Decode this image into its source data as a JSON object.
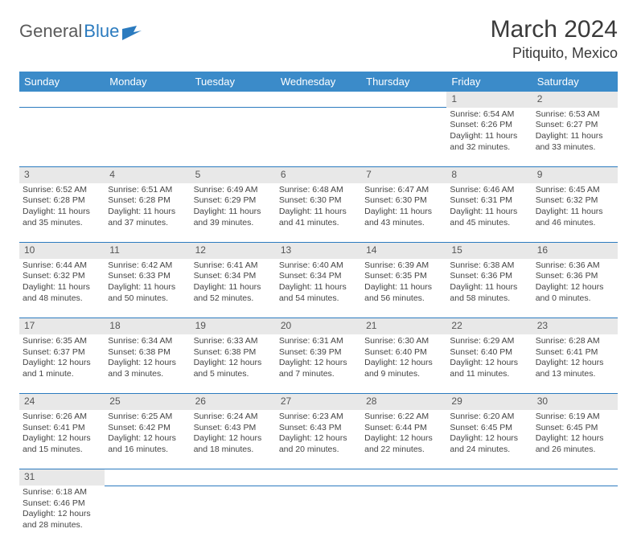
{
  "logo": {
    "text1": "General",
    "text2": "Blue"
  },
  "title": "March 2024",
  "location": "Pitiquito, Mexico",
  "colors": {
    "header_bg": "#3b8bc9",
    "header_text": "#ffffff",
    "daynum_bg": "#e8e8e8",
    "border": "#2b7bbf",
    "logo_blue": "#2b7bbf"
  },
  "weekdays": [
    "Sunday",
    "Monday",
    "Tuesday",
    "Wednesday",
    "Thursday",
    "Friday",
    "Saturday"
  ],
  "weeks": [
    [
      null,
      null,
      null,
      null,
      null,
      {
        "n": "1",
        "sr": "Sunrise: 6:54 AM",
        "ss": "Sunset: 6:26 PM",
        "d1": "Daylight: 11 hours",
        "d2": "and 32 minutes."
      },
      {
        "n": "2",
        "sr": "Sunrise: 6:53 AM",
        "ss": "Sunset: 6:27 PM",
        "d1": "Daylight: 11 hours",
        "d2": "and 33 minutes."
      }
    ],
    [
      {
        "n": "3",
        "sr": "Sunrise: 6:52 AM",
        "ss": "Sunset: 6:28 PM",
        "d1": "Daylight: 11 hours",
        "d2": "and 35 minutes."
      },
      {
        "n": "4",
        "sr": "Sunrise: 6:51 AM",
        "ss": "Sunset: 6:28 PM",
        "d1": "Daylight: 11 hours",
        "d2": "and 37 minutes."
      },
      {
        "n": "5",
        "sr": "Sunrise: 6:49 AM",
        "ss": "Sunset: 6:29 PM",
        "d1": "Daylight: 11 hours",
        "d2": "and 39 minutes."
      },
      {
        "n": "6",
        "sr": "Sunrise: 6:48 AM",
        "ss": "Sunset: 6:30 PM",
        "d1": "Daylight: 11 hours",
        "d2": "and 41 minutes."
      },
      {
        "n": "7",
        "sr": "Sunrise: 6:47 AM",
        "ss": "Sunset: 6:30 PM",
        "d1": "Daylight: 11 hours",
        "d2": "and 43 minutes."
      },
      {
        "n": "8",
        "sr": "Sunrise: 6:46 AM",
        "ss": "Sunset: 6:31 PM",
        "d1": "Daylight: 11 hours",
        "d2": "and 45 minutes."
      },
      {
        "n": "9",
        "sr": "Sunrise: 6:45 AM",
        "ss": "Sunset: 6:32 PM",
        "d1": "Daylight: 11 hours",
        "d2": "and 46 minutes."
      }
    ],
    [
      {
        "n": "10",
        "sr": "Sunrise: 6:44 AM",
        "ss": "Sunset: 6:32 PM",
        "d1": "Daylight: 11 hours",
        "d2": "and 48 minutes."
      },
      {
        "n": "11",
        "sr": "Sunrise: 6:42 AM",
        "ss": "Sunset: 6:33 PM",
        "d1": "Daylight: 11 hours",
        "d2": "and 50 minutes."
      },
      {
        "n": "12",
        "sr": "Sunrise: 6:41 AM",
        "ss": "Sunset: 6:34 PM",
        "d1": "Daylight: 11 hours",
        "d2": "and 52 minutes."
      },
      {
        "n": "13",
        "sr": "Sunrise: 6:40 AM",
        "ss": "Sunset: 6:34 PM",
        "d1": "Daylight: 11 hours",
        "d2": "and 54 minutes."
      },
      {
        "n": "14",
        "sr": "Sunrise: 6:39 AM",
        "ss": "Sunset: 6:35 PM",
        "d1": "Daylight: 11 hours",
        "d2": "and 56 minutes."
      },
      {
        "n": "15",
        "sr": "Sunrise: 6:38 AM",
        "ss": "Sunset: 6:36 PM",
        "d1": "Daylight: 11 hours",
        "d2": "and 58 minutes."
      },
      {
        "n": "16",
        "sr": "Sunrise: 6:36 AM",
        "ss": "Sunset: 6:36 PM",
        "d1": "Daylight: 12 hours",
        "d2": "and 0 minutes."
      }
    ],
    [
      {
        "n": "17",
        "sr": "Sunrise: 6:35 AM",
        "ss": "Sunset: 6:37 PM",
        "d1": "Daylight: 12 hours",
        "d2": "and 1 minute."
      },
      {
        "n": "18",
        "sr": "Sunrise: 6:34 AM",
        "ss": "Sunset: 6:38 PM",
        "d1": "Daylight: 12 hours",
        "d2": "and 3 minutes."
      },
      {
        "n": "19",
        "sr": "Sunrise: 6:33 AM",
        "ss": "Sunset: 6:38 PM",
        "d1": "Daylight: 12 hours",
        "d2": "and 5 minutes."
      },
      {
        "n": "20",
        "sr": "Sunrise: 6:31 AM",
        "ss": "Sunset: 6:39 PM",
        "d1": "Daylight: 12 hours",
        "d2": "and 7 minutes."
      },
      {
        "n": "21",
        "sr": "Sunrise: 6:30 AM",
        "ss": "Sunset: 6:40 PM",
        "d1": "Daylight: 12 hours",
        "d2": "and 9 minutes."
      },
      {
        "n": "22",
        "sr": "Sunrise: 6:29 AM",
        "ss": "Sunset: 6:40 PM",
        "d1": "Daylight: 12 hours",
        "d2": "and 11 minutes."
      },
      {
        "n": "23",
        "sr": "Sunrise: 6:28 AM",
        "ss": "Sunset: 6:41 PM",
        "d1": "Daylight: 12 hours",
        "d2": "and 13 minutes."
      }
    ],
    [
      {
        "n": "24",
        "sr": "Sunrise: 6:26 AM",
        "ss": "Sunset: 6:41 PM",
        "d1": "Daylight: 12 hours",
        "d2": "and 15 minutes."
      },
      {
        "n": "25",
        "sr": "Sunrise: 6:25 AM",
        "ss": "Sunset: 6:42 PM",
        "d1": "Daylight: 12 hours",
        "d2": "and 16 minutes."
      },
      {
        "n": "26",
        "sr": "Sunrise: 6:24 AM",
        "ss": "Sunset: 6:43 PM",
        "d1": "Daylight: 12 hours",
        "d2": "and 18 minutes."
      },
      {
        "n": "27",
        "sr": "Sunrise: 6:23 AM",
        "ss": "Sunset: 6:43 PM",
        "d1": "Daylight: 12 hours",
        "d2": "and 20 minutes."
      },
      {
        "n": "28",
        "sr": "Sunrise: 6:22 AM",
        "ss": "Sunset: 6:44 PM",
        "d1": "Daylight: 12 hours",
        "d2": "and 22 minutes."
      },
      {
        "n": "29",
        "sr": "Sunrise: 6:20 AM",
        "ss": "Sunset: 6:45 PM",
        "d1": "Daylight: 12 hours",
        "d2": "and 24 minutes."
      },
      {
        "n": "30",
        "sr": "Sunrise: 6:19 AM",
        "ss": "Sunset: 6:45 PM",
        "d1": "Daylight: 12 hours",
        "d2": "and 26 minutes."
      }
    ],
    [
      {
        "n": "31",
        "sr": "Sunrise: 6:18 AM",
        "ss": "Sunset: 6:46 PM",
        "d1": "Daylight: 12 hours",
        "d2": "and 28 minutes."
      },
      null,
      null,
      null,
      null,
      null,
      null
    ]
  ]
}
